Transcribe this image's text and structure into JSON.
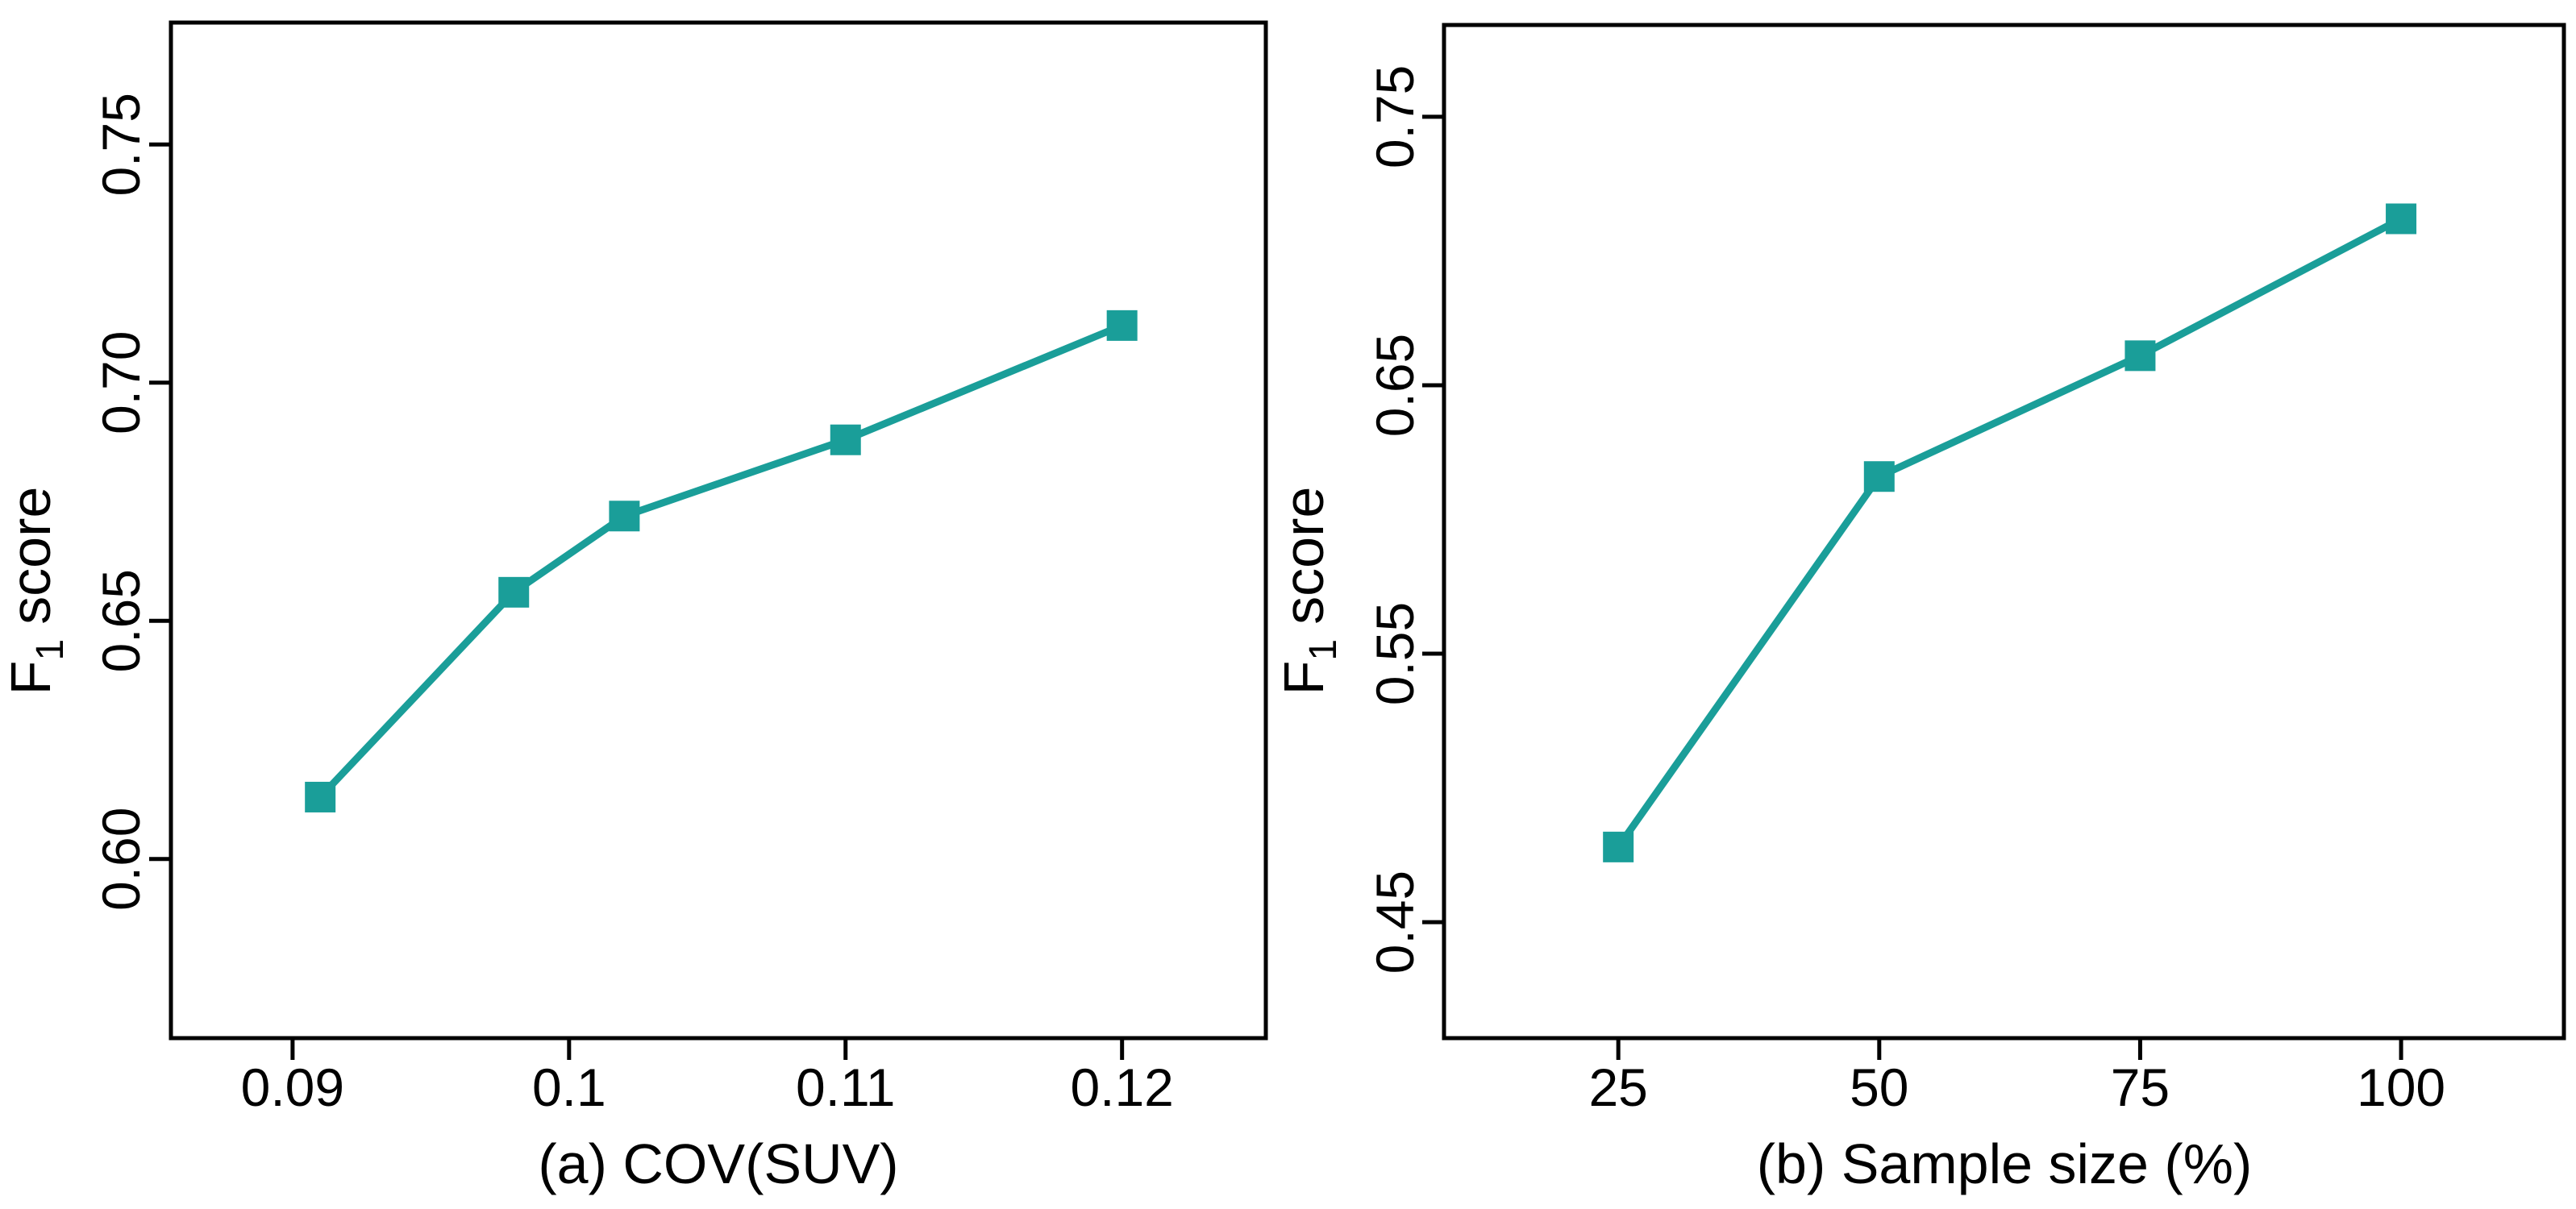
{
  "style": {
    "accent_color": "#1A9E99",
    "axis_color": "#000000",
    "background_color": "#FFFFFF"
  },
  "chart_data": [
    {
      "type": "line",
      "panel": "a",
      "title": "",
      "xlabel": "(a) COV(SUV)",
      "ylabel": "F1 score",
      "ylabel_parts": {
        "base": "F",
        "sub": "1",
        "rest": "score"
      },
      "x": [
        0.091,
        0.098,
        0.102,
        0.11,
        0.12
      ],
      "y": [
        0.613,
        0.656,
        0.672,
        0.688,
        0.712
      ],
      "xticks": [
        0.09,
        0.1,
        0.11,
        0.12
      ],
      "xtick_labels": [
        "0.09",
        "0.1",
        "0.11",
        "0.12"
      ],
      "yticks": [
        0.6,
        0.65,
        0.7,
        0.75
      ],
      "ytick_labels": [
        "0.60",
        "0.65",
        "0.70",
        "0.75"
      ],
      "xlim": [
        0.0856,
        0.1252
      ],
      "ylim": [
        0.5624,
        0.7756
      ],
      "grid": false,
      "legend": null,
      "marker": "square",
      "color": "#1A9E99"
    },
    {
      "type": "line",
      "panel": "b",
      "title": "",
      "xlabel": "(b) Sample size (%)",
      "ylabel": "F1 score",
      "ylabel_parts": {
        "base": "F",
        "sub": "1",
        "rest": "score"
      },
      "x": [
        25,
        50,
        75,
        100
      ],
      "y": [
        0.478,
        0.616,
        0.661,
        0.712
      ],
      "xticks": [
        25,
        50,
        75,
        100
      ],
      "xtick_labels": [
        "25",
        "50",
        "75",
        "100"
      ],
      "yticks": [
        0.45,
        0.55,
        0.65,
        0.75
      ],
      "ytick_labels": [
        "0.45",
        "0.55",
        "0.65",
        "0.75"
      ],
      "xlim": [
        8.3,
        115.6
      ],
      "ylim": [
        0.4068,
        0.7842
      ],
      "grid": false,
      "legend": null,
      "marker": "square",
      "color": "#1A9E99"
    }
  ]
}
